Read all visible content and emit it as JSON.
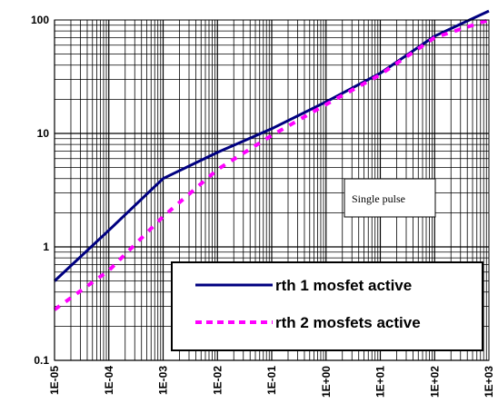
{
  "chart_data": {
    "type": "line",
    "x_scale": "log",
    "y_scale": "log",
    "xlim": [
      1e-05,
      1000
    ],
    "ylim": [
      0.1,
      100
    ],
    "grid": true,
    "xtick_labels": [
      "1E-05",
      "1E-04",
      "1E-03",
      "1E-02",
      "1E-01",
      "1E+00",
      "1E+01",
      "1E+02",
      "1E+03"
    ],
    "ytick_labels": [
      "0.1",
      "1",
      "10",
      "100"
    ],
    "annotation": "Single pulse",
    "legend_position": "bottom-right",
    "series": [
      {
        "name": "rth 1 mosfet active",
        "color": "#000080",
        "style": "solid",
        "x": [
          1e-05,
          0.0001,
          0.001,
          0.01,
          0.1,
          1,
          10,
          100,
          1000
        ],
        "y": [
          0.5,
          1.4,
          4.0,
          6.8,
          11,
          19,
          34,
          72,
          120
        ]
      },
      {
        "name": "rth 2 mosfets active",
        "color": "#ff00ff",
        "style": "dashed",
        "x": [
          1e-05,
          0.0001,
          0.001,
          0.01,
          0.1,
          1,
          10,
          100,
          1000
        ],
        "y": [
          0.28,
          0.62,
          1.85,
          4.8,
          9.6,
          18,
          33,
          70,
          100
        ]
      }
    ]
  }
}
